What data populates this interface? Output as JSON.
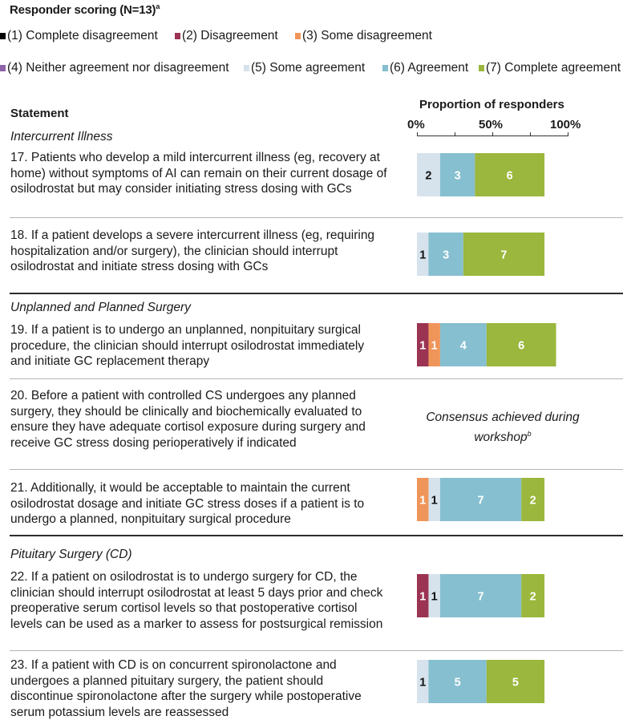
{
  "title": "Responder scoring (N=13)",
  "title_superscript": "a",
  "legend": [
    {
      "label": "(1) Complete disagreement",
      "color": "#000000"
    },
    {
      "label": "(2) Disagreement",
      "color": "#9b3353"
    },
    {
      "label": "(3) Some disagreement",
      "color": "#f0955a"
    },
    {
      "label": "(4) Neither agreement nor disagreement",
      "color": "#8e63a9"
    },
    {
      "label": "(5) Some agreement",
      "color": "#d6e2ec"
    },
    {
      "label": "(6) Agreement",
      "color": "#86bfcf"
    },
    {
      "label": "(7) Complete agreement",
      "color": "#9bb73d"
    }
  ],
  "header": {
    "statement": "Statement",
    "proportion": "Proportion of responders"
  },
  "sections": [
    {
      "label": "Intercurrent Illness"
    },
    {
      "label": "Unplanned and Planned Surgery"
    },
    {
      "label": "Pituitary Surgery (CD)"
    }
  ],
  "statements": [
    {
      "number": "17",
      "text": "17. Patients who develop a mild intercurrent illness (eg, recovery at home) without symptoms of AI can remain on their current dosage of osilodrostat but may consider initiating stress dosing with GCs"
    },
    {
      "number": "18",
      "text": "18. If a patient develops a severe intercurrent illness (eg, requiring hospitalization and/or surgery), the clinician should interrupt osilodrostat and initiate stress dosing with GCs"
    },
    {
      "number": "19",
      "text": "19. If a patient is to undergo an unplanned, nonpituitary surgical procedure, the clinician should interrupt osilodrostat immediately and initiate GC replacement therapy"
    },
    {
      "number": "20",
      "text": "20. Before a patient with controlled CS undergoes any planned surgery, they should be clinically and biochemically evaluated to ensure they have adequate cortisol exposure during surgery and receive GC stress dosing perioperatively if indicated"
    },
    {
      "number": "21",
      "text": "21. Additionally, it would be acceptable to maintain the current osilodrostat dosage and initiate GC stress doses if a patient is to undergo a planned, nonpituitary surgical procedure"
    },
    {
      "number": "22",
      "text": "22. If a patient on osilodrostat is to undergo surgery for CD, the clinician should interrupt osilodrostat at least 5 days prior and check preoperative serum cortisol levels so that postoperative cortisol levels can be used as a marker to assess for postsurgical remission"
    },
    {
      "number": "23",
      "text": "23. If a patient with CD is on concurrent spironolactone and undergoes a planned pituitary surgery, the patient should discontinue spironolactone after the surgery while postoperative serum potassium levels are reassessed"
    }
  ],
  "consensus_note": {
    "text": "Consensus achieved during workshop",
    "superscript": "b"
  },
  "chart_data": {
    "type": "bar",
    "orientation": "horizontal",
    "stacked": true,
    "title": "Proportion of responders",
    "total_responders": 13,
    "xlim": [
      0,
      100
    ],
    "x_ticks": [
      "0%",
      "50%",
      "100%"
    ],
    "categories": [
      "17",
      "18",
      "19",
      "20",
      "21",
      "22",
      "23"
    ],
    "series": [
      {
        "name": "(1) Complete disagreement",
        "color": "#000000",
        "values": [
          0,
          0,
          0,
          null,
          0,
          0,
          0
        ]
      },
      {
        "name": "(2) Disagreement",
        "color": "#9b3353",
        "values": [
          0,
          0,
          1,
          null,
          0,
          1,
          0
        ]
      },
      {
        "name": "(3) Some disagreement",
        "color": "#f0955a",
        "values": [
          0,
          0,
          1,
          null,
          1,
          0,
          0
        ]
      },
      {
        "name": "(4) Neither agreement nor disagreement",
        "color": "#8e63a9",
        "values": [
          0,
          0,
          0,
          null,
          0,
          0,
          0
        ]
      },
      {
        "name": "(5) Some agreement",
        "color": "#d6e2ec",
        "values": [
          2,
          1,
          0,
          null,
          1,
          1,
          1
        ]
      },
      {
        "name": "(6) Agreement",
        "color": "#86bfcf",
        "values": [
          3,
          3,
          4,
          null,
          7,
          7,
          5
        ]
      },
      {
        "name": "(7) Complete agreement",
        "color": "#9bb73d",
        "values": [
          6,
          7,
          6,
          null,
          2,
          2,
          5
        ]
      }
    ]
  }
}
